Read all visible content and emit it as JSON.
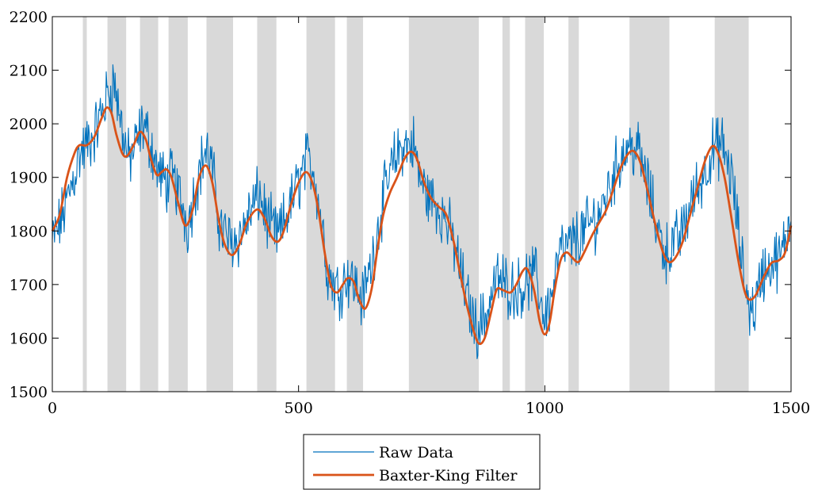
{
  "chart_data": {
    "type": "line",
    "title": "",
    "xlabel": "",
    "ylabel": "",
    "xlim": [
      0,
      1500
    ],
    "ylim": [
      1500,
      2200
    ],
    "x_ticks": [
      0,
      500,
      1000,
      1500
    ],
    "y_ticks": [
      1500,
      1600,
      1700,
      1800,
      1900,
      2000,
      2100,
      2200
    ],
    "grid": false,
    "legend_position": "bottom-center, outside plot",
    "shaded_regions": [
      [
        62,
        70
      ],
      [
        112,
        150
      ],
      [
        178,
        215
      ],
      [
        236,
        275
      ],
      [
        313,
        367
      ],
      [
        416,
        455
      ],
      [
        516,
        574
      ],
      [
        598,
        631
      ],
      [
        724,
        866
      ],
      [
        914,
        929
      ],
      [
        960,
        998
      ],
      [
        1048,
        1069
      ],
      [
        1172,
        1253
      ],
      [
        1345,
        1414
      ]
    ],
    "shaded_color": "#d9d9d9",
    "series": [
      {
        "name": "Raw Data",
        "color": "#0072BD",
        "trend": [
          [
            0,
            1780
          ],
          [
            10,
            1800
          ],
          [
            25,
            1840
          ],
          [
            40,
            1890
          ],
          [
            55,
            1940
          ],
          [
            70,
            1960
          ],
          [
            85,
            1980
          ],
          [
            100,
            2020
          ],
          [
            115,
            2060
          ],
          [
            125,
            2080
          ],
          [
            140,
            2000
          ],
          [
            155,
            1930
          ],
          [
            170,
            1960
          ],
          [
            185,
            2000
          ],
          [
            200,
            1960
          ],
          [
            215,
            1910
          ],
          [
            230,
            1890
          ],
          [
            245,
            1900
          ],
          [
            260,
            1860
          ],
          [
            275,
            1810
          ],
          [
            290,
            1880
          ],
          [
            310,
            1950
          ],
          [
            322,
            1930
          ],
          [
            340,
            1810
          ],
          [
            360,
            1780
          ],
          [
            380,
            1790
          ],
          [
            400,
            1830
          ],
          [
            420,
            1870
          ],
          [
            440,
            1810
          ],
          [
            460,
            1790
          ],
          [
            480,
            1840
          ],
          [
            500,
            1890
          ],
          [
            515,
            1930
          ],
          [
            530,
            1920
          ],
          [
            545,
            1830
          ],
          [
            560,
            1720
          ],
          [
            580,
            1690
          ],
          [
            600,
            1720
          ],
          [
            615,
            1700
          ],
          [
            630,
            1670
          ],
          [
            650,
            1750
          ],
          [
            670,
            1850
          ],
          [
            690,
            1920
          ],
          [
            710,
            1960
          ],
          [
            735,
            1960
          ],
          [
            745,
            1900
          ],
          [
            760,
            1870
          ],
          [
            780,
            1850
          ],
          [
            800,
            1820
          ],
          [
            820,
            1760
          ],
          [
            840,
            1680
          ],
          [
            860,
            1620
          ],
          [
            880,
            1640
          ],
          [
            900,
            1710
          ],
          [
            920,
            1700
          ],
          [
            940,
            1690
          ],
          [
            960,
            1700
          ],
          [
            980,
            1720
          ],
          [
            1000,
            1640
          ],
          [
            1015,
            1680
          ],
          [
            1030,
            1760
          ],
          [
            1050,
            1770
          ],
          [
            1070,
            1790
          ],
          [
            1090,
            1810
          ],
          [
            1110,
            1830
          ],
          [
            1130,
            1880
          ],
          [
            1150,
            1930
          ],
          [
            1170,
            1960
          ],
          [
            1190,
            1950
          ],
          [
            1210,
            1880
          ],
          [
            1230,
            1800
          ],
          [
            1245,
            1760
          ],
          [
            1260,
            1770
          ],
          [
            1280,
            1800
          ],
          [
            1300,
            1860
          ],
          [
            1320,
            1900
          ],
          [
            1340,
            1950
          ],
          [
            1360,
            1960
          ],
          [
            1380,
            1900
          ],
          [
            1400,
            1740
          ],
          [
            1415,
            1660
          ],
          [
            1425,
            1650
          ],
          [
            1440,
            1720
          ],
          [
            1460,
            1740
          ],
          [
            1480,
            1750
          ],
          [
            1490,
            1790
          ],
          [
            1500,
            1830
          ]
        ]
      },
      {
        "name": "Baxter-King Filter",
        "color": "#D95319",
        "points": [
          [
            0,
            1800
          ],
          [
            15,
            1830
          ],
          [
            30,
            1900
          ],
          [
            45,
            1945
          ],
          [
            55,
            1960
          ],
          [
            70,
            1960
          ],
          [
            85,
            1975
          ],
          [
            100,
            2010
          ],
          [
            110,
            2030
          ],
          [
            120,
            2020
          ],
          [
            130,
            1980
          ],
          [
            142,
            1945
          ],
          [
            152,
            1940
          ],
          [
            165,
            1960
          ],
          [
            178,
            1985
          ],
          [
            190,
            1970
          ],
          [
            200,
            1935
          ],
          [
            212,
            1905
          ],
          [
            222,
            1910
          ],
          [
            232,
            1915
          ],
          [
            242,
            1900
          ],
          [
            255,
            1855
          ],
          [
            270,
            1810
          ],
          [
            285,
            1840
          ],
          [
            298,
            1900
          ],
          [
            312,
            1922
          ],
          [
            325,
            1890
          ],
          [
            338,
            1820
          ],
          [
            350,
            1775
          ],
          [
            365,
            1755
          ],
          [
            380,
            1775
          ],
          [
            395,
            1815
          ],
          [
            415,
            1840
          ],
          [
            430,
            1825
          ],
          [
            445,
            1790
          ],
          [
            458,
            1780
          ],
          [
            470,
            1800
          ],
          [
            485,
            1850
          ],
          [
            500,
            1890
          ],
          [
            515,
            1910
          ],
          [
            528,
            1890
          ],
          [
            540,
            1840
          ],
          [
            553,
            1760
          ],
          [
            565,
            1700
          ],
          [
            578,
            1685
          ],
          [
            590,
            1700
          ],
          [
            600,
            1712
          ],
          [
            612,
            1705
          ],
          [
            622,
            1675
          ],
          [
            635,
            1655
          ],
          [
            648,
            1690
          ],
          [
            660,
            1765
          ],
          [
            672,
            1830
          ],
          [
            685,
            1870
          ],
          [
            700,
            1900
          ],
          [
            715,
            1935
          ],
          [
            728,
            1948
          ],
          [
            740,
            1935
          ],
          [
            755,
            1890
          ],
          [
            770,
            1860
          ],
          [
            785,
            1845
          ],
          [
            800,
            1830
          ],
          [
            815,
            1780
          ],
          [
            828,
            1720
          ],
          [
            842,
            1660
          ],
          [
            855,
            1615
          ],
          [
            866,
            1590
          ],
          [
            878,
            1600
          ],
          [
            890,
            1645
          ],
          [
            902,
            1690
          ],
          [
            914,
            1690
          ],
          [
            930,
            1685
          ],
          [
            942,
            1700
          ],
          [
            955,
            1725
          ],
          [
            965,
            1728
          ],
          [
            978,
            1690
          ],
          [
            990,
            1630
          ],
          [
            1000,
            1607
          ],
          [
            1010,
            1630
          ],
          [
            1020,
            1690
          ],
          [
            1032,
            1745
          ],
          [
            1044,
            1760
          ],
          [
            1056,
            1750
          ],
          [
            1068,
            1742
          ],
          [
            1080,
            1760
          ],
          [
            1095,
            1790
          ],
          [
            1110,
            1815
          ],
          [
            1125,
            1840
          ],
          [
            1140,
            1880
          ],
          [
            1155,
            1920
          ],
          [
            1170,
            1945
          ],
          [
            1182,
            1948
          ],
          [
            1195,
            1925
          ],
          [
            1210,
            1870
          ],
          [
            1225,
            1810
          ],
          [
            1240,
            1760
          ],
          [
            1252,
            1742
          ],
          [
            1265,
            1750
          ],
          [
            1280,
            1780
          ],
          [
            1295,
            1830
          ],
          [
            1310,
            1880
          ],
          [
            1325,
            1930
          ],
          [
            1340,
            1958
          ],
          [
            1352,
            1945
          ],
          [
            1365,
            1900
          ],
          [
            1378,
            1830
          ],
          [
            1392,
            1750
          ],
          [
            1405,
            1690
          ],
          [
            1415,
            1672
          ],
          [
            1428,
            1680
          ],
          [
            1445,
            1715
          ],
          [
            1460,
            1740
          ],
          [
            1475,
            1745
          ],
          [
            1488,
            1760
          ],
          [
            1500,
            1810
          ]
        ]
      }
    ]
  },
  "legend": {
    "entries": [
      "Raw Data",
      "Baxter-King Filter"
    ]
  }
}
